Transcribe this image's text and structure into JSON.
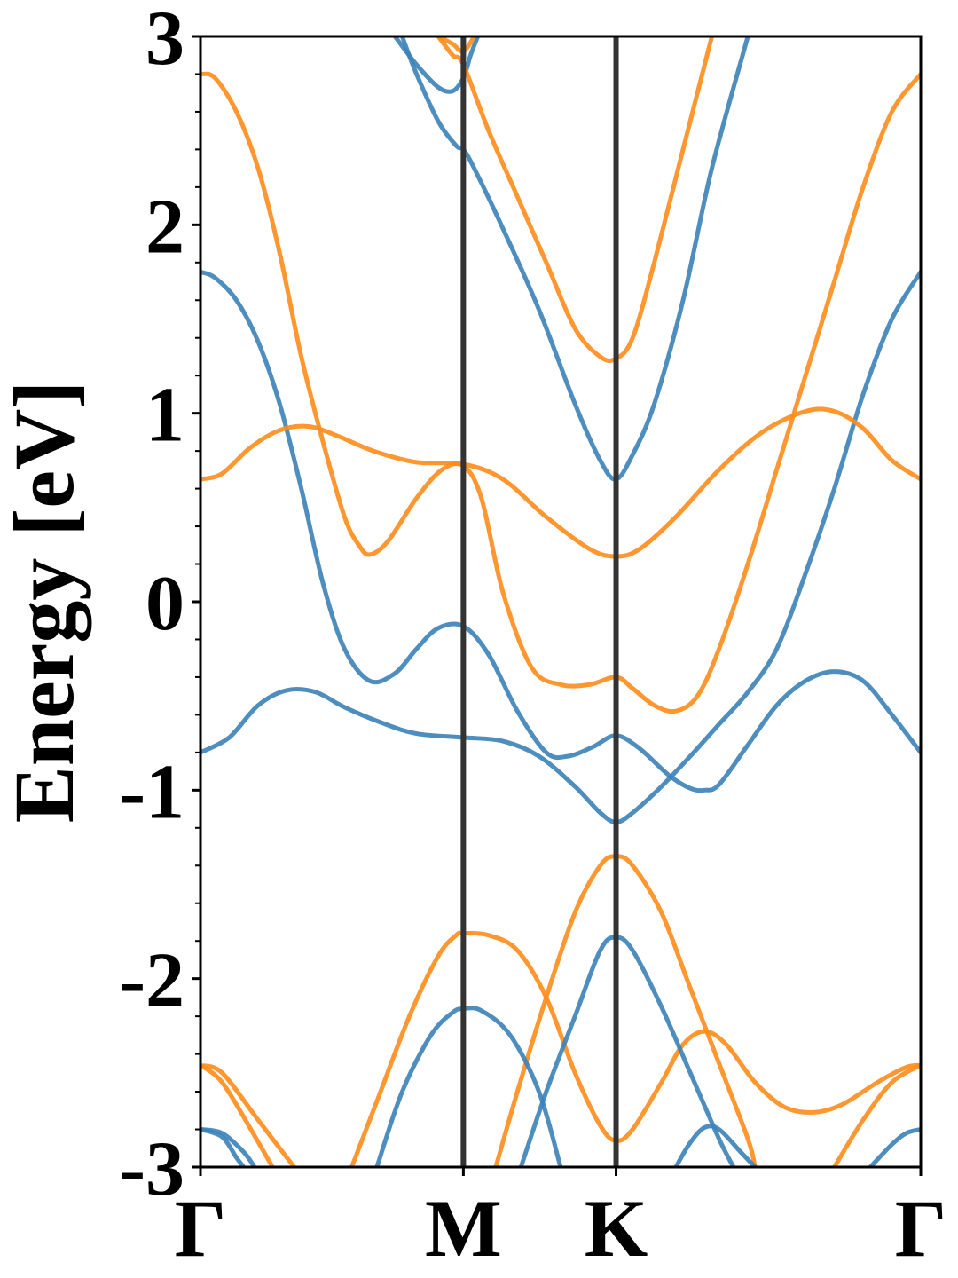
{
  "chart_data": {
    "type": "line",
    "title": "",
    "ylabel": "Energy [eV]",
    "xlabel": "",
    "ylim": [
      -3,
      3
    ],
    "xlim": [
      0,
      1
    ],
    "grid": false,
    "y_ticks": [
      "3",
      "2",
      "1",
      "0",
      "-1",
      "-2",
      "-3"
    ],
    "y_tick_values": [
      3,
      2,
      1,
      0,
      -1,
      -2,
      -3
    ],
    "high_symmetry_points": [
      {
        "label": "Γ",
        "x": 0.0
      },
      {
        "label": "M",
        "x": 0.365
      },
      {
        "label": "K",
        "x": 0.577
      },
      {
        "label": "Γ",
        "x": 1.0
      }
    ],
    "series_colors": {
      "blue": "#3b82b8",
      "orange": "#ff8c1a",
      "vline": "#333333"
    },
    "series": [
      {
        "color": "blue",
        "points": [
          [
            0.0,
            1.75
          ],
          [
            0.02,
            1.72
          ],
          [
            0.05,
            1.6
          ],
          [
            0.08,
            1.38
          ],
          [
            0.11,
            1.05
          ],
          [
            0.14,
            0.6
          ],
          [
            0.17,
            0.1
          ],
          [
            0.2,
            -0.25
          ],
          [
            0.235,
            -0.42
          ],
          [
            0.27,
            -0.38
          ],
          [
            0.3,
            -0.25
          ],
          [
            0.33,
            -0.14
          ],
          [
            0.365,
            -0.13
          ],
          [
            0.4,
            -0.28
          ],
          [
            0.44,
            -0.58
          ],
          [
            0.48,
            -0.8
          ],
          [
            0.51,
            -0.82
          ],
          [
            0.545,
            -0.77
          ],
          [
            0.577,
            -0.71
          ],
          [
            0.61,
            -0.78
          ],
          [
            0.65,
            -0.92
          ],
          [
            0.68,
            -0.99
          ],
          [
            0.7,
            -1.0
          ],
          [
            0.72,
            -0.97
          ],
          [
            0.76,
            -0.76
          ],
          [
            0.8,
            -0.55
          ],
          [
            0.84,
            -0.42
          ],
          [
            0.88,
            -0.37
          ],
          [
            0.92,
            -0.42
          ],
          [
            0.96,
            -0.6
          ],
          [
            1.0,
            -0.8
          ]
        ]
      },
      {
        "color": "blue",
        "points": [
          [
            0.0,
            -0.8
          ],
          [
            0.04,
            -0.72
          ],
          [
            0.08,
            -0.55
          ],
          [
            0.12,
            -0.47
          ],
          [
            0.16,
            -0.48
          ],
          [
            0.2,
            -0.56
          ],
          [
            0.25,
            -0.64
          ],
          [
            0.3,
            -0.7
          ],
          [
            0.365,
            -0.72
          ],
          [
            0.42,
            -0.74
          ],
          [
            0.47,
            -0.82
          ],
          [
            0.52,
            -0.98
          ],
          [
            0.555,
            -1.12
          ],
          [
            0.577,
            -1.17
          ],
          [
            0.6,
            -1.12
          ],
          [
            0.64,
            -0.98
          ],
          [
            0.68,
            -0.82
          ],
          [
            0.72,
            -0.65
          ],
          [
            0.76,
            -0.48
          ],
          [
            0.8,
            -0.25
          ],
          [
            0.84,
            0.15
          ],
          [
            0.88,
            0.6
          ],
          [
            0.92,
            1.1
          ],
          [
            0.96,
            1.5
          ],
          [
            1.0,
            1.75
          ]
        ]
      },
      {
        "color": "blue",
        "points": [
          [
            0.27,
            3.0
          ],
          [
            0.3,
            2.85
          ],
          [
            0.33,
            2.73
          ],
          [
            0.35,
            2.71
          ],
          [
            0.365,
            2.78
          ],
          [
            0.375,
            2.9
          ],
          [
            0.385,
            3.0
          ]
        ]
      },
      {
        "color": "blue",
        "points": [
          [
            0.28,
            3.0
          ],
          [
            0.3,
            2.8
          ],
          [
            0.33,
            2.55
          ],
          [
            0.355,
            2.42
          ],
          [
            0.365,
            2.4
          ],
          [
            0.38,
            2.3
          ],
          [
            0.42,
            1.98
          ],
          [
            0.47,
            1.55
          ],
          [
            0.52,
            1.05
          ],
          [
            0.555,
            0.75
          ],
          [
            0.577,
            0.65
          ],
          [
            0.6,
            0.78
          ],
          [
            0.63,
            1.05
          ],
          [
            0.67,
            1.6
          ],
          [
            0.71,
            2.3
          ],
          [
            0.76,
            3.0
          ]
        ]
      },
      {
        "color": "orange",
        "points": [
          [
            0.0,
            2.8
          ],
          [
            0.02,
            2.78
          ],
          [
            0.05,
            2.6
          ],
          [
            0.08,
            2.3
          ],
          [
            0.11,
            1.85
          ],
          [
            0.14,
            1.3
          ],
          [
            0.17,
            0.85
          ],
          [
            0.2,
            0.45
          ],
          [
            0.22,
            0.3
          ],
          [
            0.235,
            0.25
          ],
          [
            0.26,
            0.32
          ],
          [
            0.3,
            0.55
          ],
          [
            0.335,
            0.7
          ],
          [
            0.365,
            0.72
          ],
          [
            0.39,
            0.55
          ],
          [
            0.42,
            0.05
          ],
          [
            0.46,
            -0.35
          ],
          [
            0.5,
            -0.44
          ],
          [
            0.54,
            -0.44
          ],
          [
            0.577,
            -0.4
          ],
          [
            0.6,
            -0.46
          ],
          [
            0.63,
            -0.55
          ],
          [
            0.66,
            -0.58
          ],
          [
            0.69,
            -0.5
          ],
          [
            0.72,
            -0.25
          ],
          [
            0.76,
            0.2
          ],
          [
            0.8,
            0.7
          ],
          [
            0.84,
            1.2
          ],
          [
            0.88,
            1.7
          ],
          [
            0.92,
            2.2
          ],
          [
            0.96,
            2.6
          ],
          [
            1.0,
            2.8
          ]
        ]
      },
      {
        "color": "orange",
        "points": [
          [
            0.0,
            0.65
          ],
          [
            0.03,
            0.68
          ],
          [
            0.07,
            0.82
          ],
          [
            0.11,
            0.91
          ],
          [
            0.15,
            0.93
          ],
          [
            0.19,
            0.88
          ],
          [
            0.24,
            0.8
          ],
          [
            0.3,
            0.74
          ],
          [
            0.365,
            0.73
          ],
          [
            0.42,
            0.65
          ],
          [
            0.48,
            0.45
          ],
          [
            0.54,
            0.28
          ],
          [
            0.577,
            0.24
          ],
          [
            0.61,
            0.28
          ],
          [
            0.66,
            0.45
          ],
          [
            0.72,
            0.7
          ],
          [
            0.78,
            0.9
          ],
          [
            0.84,
            1.01
          ],
          [
            0.88,
            1.01
          ],
          [
            0.92,
            0.92
          ],
          [
            0.96,
            0.75
          ],
          [
            1.0,
            0.65
          ]
        ]
      },
      {
        "color": "orange",
        "points": [
          [
            0.33,
            3.0
          ],
          [
            0.35,
            2.96
          ],
          [
            0.365,
            2.92
          ],
          [
            0.38,
            3.0
          ]
        ]
      },
      {
        "color": "orange",
        "points": [
          [
            0.33,
            3.0
          ],
          [
            0.35,
            2.9
          ],
          [
            0.365,
            2.85
          ],
          [
            0.4,
            2.5
          ],
          [
            0.44,
            2.15
          ],
          [
            0.48,
            1.8
          ],
          [
            0.52,
            1.45
          ],
          [
            0.555,
            1.3
          ],
          [
            0.577,
            1.29
          ],
          [
            0.6,
            1.4
          ],
          [
            0.63,
            1.8
          ],
          [
            0.67,
            2.4
          ],
          [
            0.71,
            3.0
          ]
        ]
      },
      {
        "color": "orange",
        "points": [
          [
            0.21,
            -3.0
          ],
          [
            0.25,
            -2.6
          ],
          [
            0.29,
            -2.2
          ],
          [
            0.33,
            -1.88
          ],
          [
            0.355,
            -1.77
          ],
          [
            0.365,
            -1.76
          ],
          [
            0.4,
            -1.77
          ],
          [
            0.44,
            -1.85
          ],
          [
            0.48,
            -2.1
          ],
          [
            0.52,
            -2.5
          ],
          [
            0.555,
            -2.78
          ],
          [
            0.577,
            -2.86
          ],
          [
            0.6,
            -2.8
          ],
          [
            0.64,
            -2.55
          ],
          [
            0.67,
            -2.35
          ],
          [
            0.7,
            -2.28
          ],
          [
            0.73,
            -2.35
          ],
          [
            0.77,
            -2.55
          ],
          [
            0.81,
            -2.68
          ],
          [
            0.85,
            -2.71
          ],
          [
            0.89,
            -2.67
          ],
          [
            0.94,
            -2.55
          ],
          [
            0.98,
            -2.47
          ],
          [
            1.0,
            -2.46
          ]
        ]
      },
      {
        "color": "orange",
        "points": [
          [
            0.41,
            -3.0
          ],
          [
            0.44,
            -2.6
          ],
          [
            0.48,
            -2.1
          ],
          [
            0.52,
            -1.65
          ],
          [
            0.555,
            -1.4
          ],
          [
            0.577,
            -1.35
          ],
          [
            0.6,
            -1.4
          ],
          [
            0.64,
            -1.65
          ],
          [
            0.68,
            -2.05
          ],
          [
            0.72,
            -2.45
          ],
          [
            0.76,
            -2.85
          ],
          [
            0.77,
            -3.0
          ]
        ]
      },
      {
        "color": "orange",
        "points": [
          [
            0.0,
            -2.46
          ],
          [
            0.03,
            -2.5
          ],
          [
            0.08,
            -2.75
          ],
          [
            0.13,
            -3.0
          ]
        ]
      },
      {
        "color": "orange",
        "points": [
          [
            0.0,
            -2.46
          ],
          [
            0.03,
            -2.55
          ],
          [
            0.07,
            -2.8
          ],
          [
            0.1,
            -3.0
          ]
        ]
      },
      {
        "color": "orange",
        "points": [
          [
            0.88,
            -3.0
          ],
          [
            0.92,
            -2.75
          ],
          [
            0.96,
            -2.55
          ],
          [
            1.0,
            -2.46
          ]
        ]
      },
      {
        "color": "blue",
        "points": [
          [
            0.245,
            -3.0
          ],
          [
            0.28,
            -2.6
          ],
          [
            0.32,
            -2.3
          ],
          [
            0.35,
            -2.18
          ],
          [
            0.365,
            -2.16
          ],
          [
            0.39,
            -2.17
          ],
          [
            0.43,
            -2.3
          ],
          [
            0.47,
            -2.6
          ],
          [
            0.5,
            -3.0
          ]
        ]
      },
      {
        "color": "blue",
        "points": [
          [
            0.445,
            -3.0
          ],
          [
            0.48,
            -2.6
          ],
          [
            0.52,
            -2.2
          ],
          [
            0.555,
            -1.85
          ],
          [
            0.577,
            -1.78
          ],
          [
            0.6,
            -1.85
          ],
          [
            0.64,
            -2.15
          ],
          [
            0.68,
            -2.5
          ],
          [
            0.72,
            -2.85
          ],
          [
            0.74,
            -3.0
          ]
        ]
      },
      {
        "color": "blue",
        "points": [
          [
            0.0,
            -2.8
          ],
          [
            0.03,
            -2.82
          ],
          [
            0.06,
            -2.92
          ],
          [
            0.075,
            -3.0
          ]
        ]
      },
      {
        "color": "blue",
        "points": [
          [
            0.0,
            -2.8
          ],
          [
            0.03,
            -2.84
          ],
          [
            0.05,
            -2.95
          ],
          [
            0.06,
            -3.0
          ]
        ]
      },
      {
        "color": "blue",
        "points": [
          [
            0.66,
            -3.0
          ],
          [
            0.68,
            -2.87
          ],
          [
            0.7,
            -2.79
          ],
          [
            0.72,
            -2.8
          ],
          [
            0.75,
            -2.92
          ],
          [
            0.77,
            -3.0
          ]
        ]
      },
      {
        "color": "blue",
        "points": [
          [
            0.93,
            -3.0
          ],
          [
            0.96,
            -2.88
          ],
          [
            0.98,
            -2.82
          ],
          [
            1.0,
            -2.8
          ]
        ]
      }
    ]
  }
}
